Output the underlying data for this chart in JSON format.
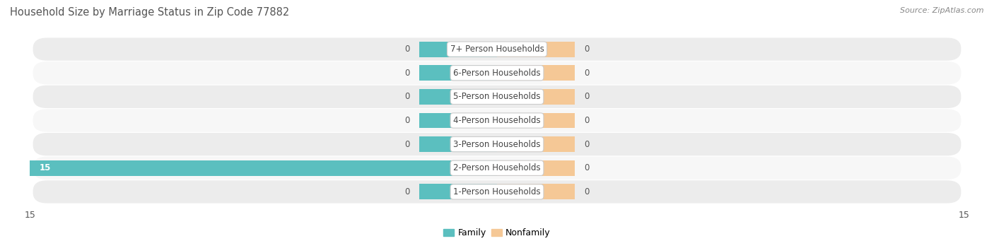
{
  "title": "Household Size by Marriage Status in Zip Code 77882",
  "source": "Source: ZipAtlas.com",
  "categories": [
    "7+ Person Households",
    "6-Person Households",
    "5-Person Households",
    "4-Person Households",
    "3-Person Households",
    "2-Person Households",
    "1-Person Households"
  ],
  "family_values": [
    0,
    0,
    0,
    0,
    0,
    15,
    0
  ],
  "nonfamily_values": [
    0,
    0,
    0,
    0,
    0,
    0,
    0
  ],
  "family_color": "#5bbfbf",
  "nonfamily_color": "#f5c896",
  "row_bg_even": "#ececec",
  "row_bg_odd": "#f7f7f7",
  "label_bg_color": "#ffffff",
  "label_edge_color": "#cccccc",
  "xlim": [
    -15,
    15
  ],
  "title_fontsize": 10.5,
  "source_fontsize": 8,
  "label_fontsize": 8.5,
  "value_fontsize": 8.5,
  "tick_fontsize": 9,
  "legend_fontsize": 9,
  "bar_height": 0.65,
  "stub_size": 2.5,
  "background_color": "#ffffff",
  "text_color": "#444444",
  "value_color": "#555555"
}
